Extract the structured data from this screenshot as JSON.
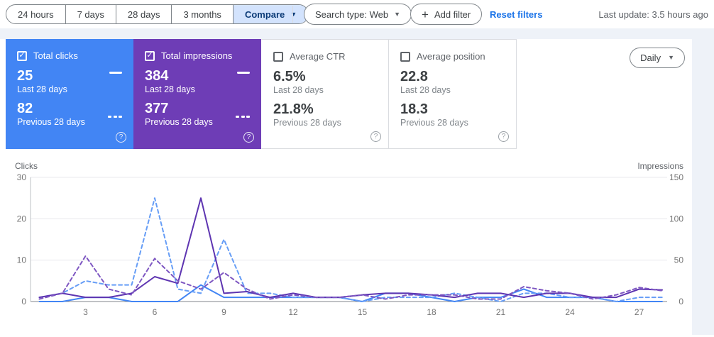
{
  "toolbar": {
    "date_ranges": [
      "24 hours",
      "7 days",
      "28 days",
      "3 months"
    ],
    "compare_label": "Compare",
    "search_type_label": "Search type: Web",
    "add_filter_label": "Add filter",
    "reset_filters_label": "Reset filters",
    "last_update": "Last update: 3.5 hours ago"
  },
  "cards": [
    {
      "label": "Total clicks",
      "checked": true,
      "bg": "#4285f4",
      "value_last": "25",
      "period_last": "Last 28 days",
      "value_prev": "82",
      "period_prev": "Previous 28 days"
    },
    {
      "label": "Total impressions",
      "checked": true,
      "bg": "#6e3db6",
      "value_last": "384",
      "period_last": "Last 28 days",
      "value_prev": "377",
      "period_prev": "Previous 28 days"
    },
    {
      "label": "Average CTR",
      "checked": false,
      "bg": "#ffffff",
      "value_last": "6.5%",
      "period_last": "Last 28 days",
      "value_prev": "21.8%",
      "period_prev": "Previous 28 days"
    },
    {
      "label": "Average position",
      "checked": false,
      "bg": "#ffffff",
      "value_last": "22.8",
      "period_last": "Last 28 days",
      "value_prev": "18.3",
      "period_prev": "Previous 28 days"
    }
  ],
  "granularity": {
    "label": "Daily"
  },
  "chart_data": {
    "type": "line",
    "x": [
      1,
      2,
      3,
      4,
      5,
      6,
      7,
      8,
      9,
      10,
      11,
      12,
      13,
      14,
      15,
      16,
      17,
      18,
      19,
      20,
      21,
      22,
      23,
      24,
      25,
      26,
      27,
      28
    ],
    "x_tick_labels": [
      3,
      6,
      9,
      12,
      15,
      18,
      21,
      24,
      27
    ],
    "left_axis": {
      "label": "Clicks",
      "ticks": [
        0,
        10,
        20,
        30
      ],
      "range": [
        0,
        30
      ]
    },
    "right_axis": {
      "label": "Impressions",
      "ticks": [
        0,
        50,
        100,
        150
      ],
      "range": [
        0,
        150
      ]
    },
    "grid": true,
    "legend_position": "none",
    "series": [
      {
        "name": "Clicks - Last 28 days",
        "axis": "left",
        "style": "solid",
        "color": "#4285f4",
        "values": [
          0,
          0,
          1,
          1,
          0,
          0,
          0,
          4,
          1,
          1,
          1,
          1,
          1,
          1,
          0,
          2,
          2,
          1,
          0,
          1,
          1,
          3,
          1,
          1,
          1,
          0,
          0,
          0
        ]
      },
      {
        "name": "Clicks - Previous 28 days",
        "axis": "left",
        "style": "dashed",
        "color": "#669df6",
        "values": [
          1,
          2,
          5,
          4,
          4,
          25,
          3,
          2,
          15,
          2,
          2,
          1,
          1,
          1,
          0,
          1,
          1,
          1,
          2,
          1,
          0,
          2,
          2,
          1,
          1,
          0,
          1,
          1
        ]
      },
      {
        "name": "Impressions - Last 28 days",
        "axis": "right",
        "style": "solid",
        "color": "#5e35b1",
        "values": [
          5,
          10,
          5,
          5,
          10,
          30,
          22,
          125,
          10,
          12,
          5,
          10,
          5,
          5,
          8,
          10,
          10,
          8,
          5,
          10,
          10,
          5,
          10,
          10,
          5,
          5,
          15,
          14
        ]
      },
      {
        "name": "Impressions - Previous 28 days",
        "axis": "right",
        "style": "dashed",
        "color": "#7e57c2",
        "values": [
          3,
          10,
          55,
          15,
          8,
          52,
          25,
          15,
          35,
          15,
          3,
          8,
          5,
          5,
          8,
          3,
          8,
          8,
          8,
          3,
          3,
          18,
          13,
          10,
          3,
          8,
          17,
          13
        ]
      }
    ]
  }
}
